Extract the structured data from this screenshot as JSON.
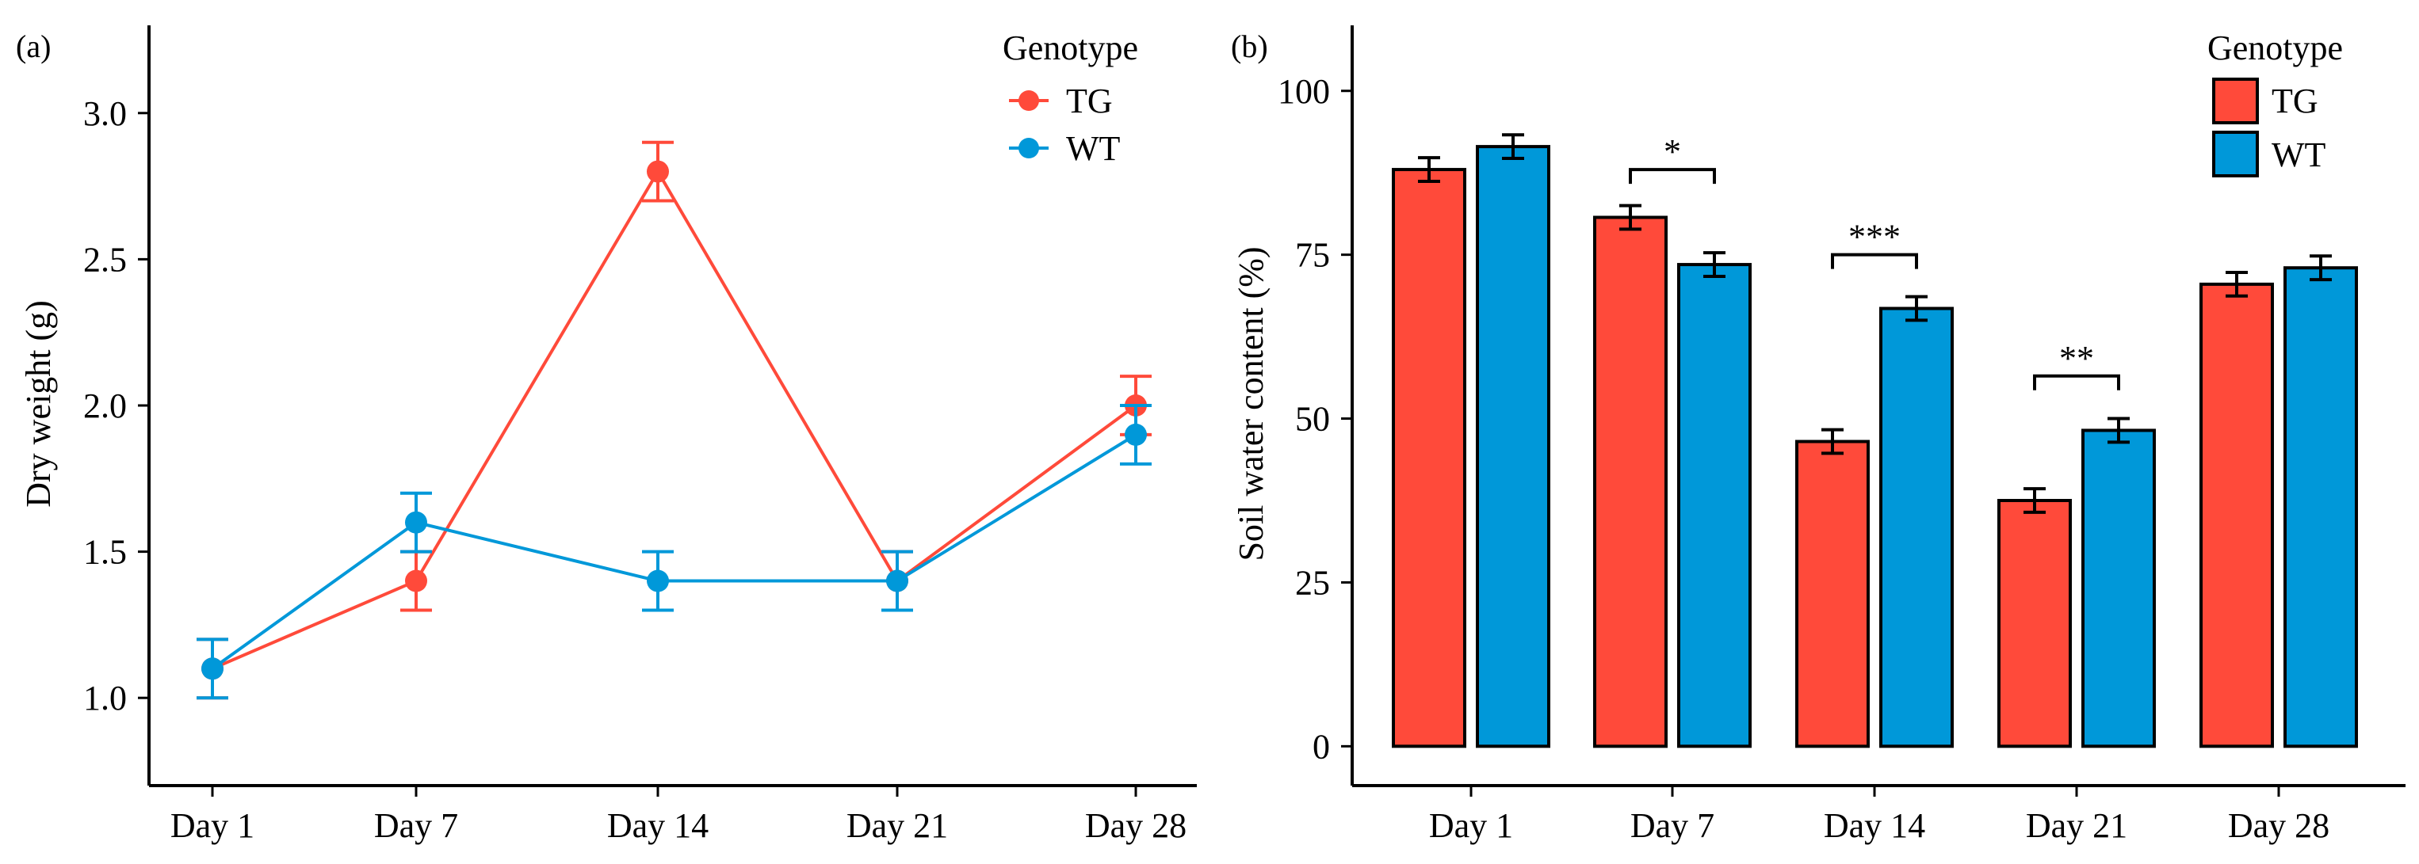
{
  "colors": {
    "TG": "#ff4a3a",
    "WT": "#0098d9"
  },
  "chart_data": [
    {
      "panel": "(a)",
      "type": "line",
      "categories": [
        "Day 1",
        "Day 7",
        "Day 14",
        "Day 21",
        "Day 28"
      ],
      "series": [
        {
          "name": "TG",
          "values": [
            1.1,
            1.4,
            2.8,
            1.4,
            2.0
          ],
          "errors": [
            0.1,
            0.1,
            0.1,
            0.1,
            0.1
          ]
        },
        {
          "name": "WT",
          "values": [
            1.1,
            1.6,
            1.4,
            1.4,
            1.9
          ],
          "errors": [
            0.1,
            0.1,
            0.1,
            0.1,
            0.1
          ]
        }
      ],
      "xlabel": "",
      "ylabel": "Dry weight (g)",
      "ylim": [
        0.7,
        3.3
      ],
      "yticks": [
        1.0,
        1.5,
        2.0,
        2.5,
        3.0
      ],
      "ytick_labels": [
        "1.0",
        "1.5",
        "2.0",
        "2.5",
        "3.0"
      ],
      "legend": {
        "title": "Genotype",
        "position": "top-right",
        "entries": [
          "TG",
          "WT"
        ]
      },
      "grid": false
    },
    {
      "panel": "(b)",
      "type": "bar",
      "categories": [
        "Day 1",
        "Day 7",
        "Day 14",
        "Day 21",
        "Day 28"
      ],
      "series": [
        {
          "name": "TG",
          "values": [
            88,
            80.7,
            46.5,
            37.5,
            70.5
          ],
          "errors": [
            1.8,
            1.8,
            1.8,
            1.8,
            1.8
          ]
        },
        {
          "name": "WT",
          "values": [
            91.5,
            73.5,
            66.8,
            48.2,
            73.0
          ],
          "errors": [
            1.8,
            1.8,
            1.8,
            1.8,
            1.8
          ]
        }
      ],
      "xlabel": "",
      "ylabel": "Soil water content (%)",
      "ylim": [
        -6,
        110
      ],
      "yticks": [
        0,
        25,
        50,
        75,
        100
      ],
      "ytick_labels": [
        "0",
        "25",
        "50",
        "75",
        "100"
      ],
      "significance": [
        {
          "category": "Day 7",
          "label": "*",
          "level": 88
        },
        {
          "category": "Day 14",
          "label": "***",
          "level": 75
        },
        {
          "category": "Day 21",
          "label": "**",
          "level": 56.5
        }
      ],
      "legend": {
        "title": "Genotype",
        "position": "top-right",
        "entries": [
          "TG",
          "WT"
        ]
      },
      "grid": false
    }
  ]
}
